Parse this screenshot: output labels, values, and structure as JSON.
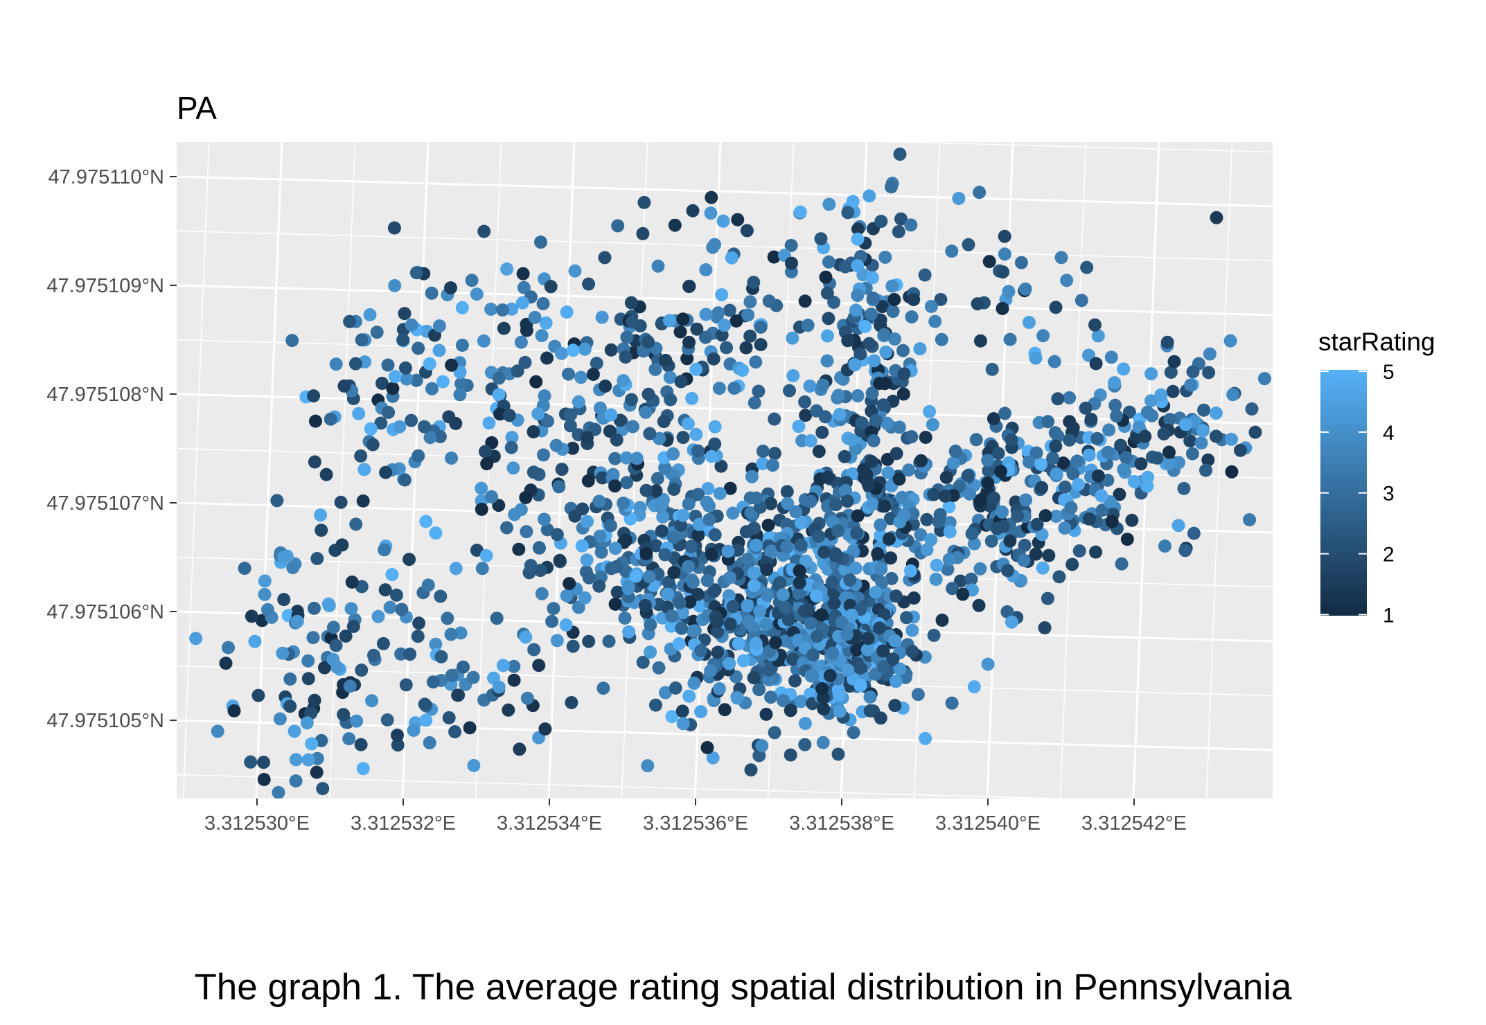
{
  "caption": "The graph 1. The average rating spatial distribution in Pennsylvania",
  "chart_data": {
    "type": "scatter",
    "title": "PA",
    "xlabel": "",
    "ylabel": "",
    "x_ticks": [
      "3.312530°E",
      "3.312532°E",
      "3.312534°E",
      "3.312536°E",
      "3.312538°E",
      "3.312540°E",
      "3.312542°E"
    ],
    "y_ticks": [
      "47.975105°N",
      "47.975106°N",
      "47.975107°N",
      "47.975108°N",
      "47.975109°N",
      "47.975110°N"
    ],
    "xlim": [
      3.3125287,
      3.3125438
    ],
    "ylim": [
      47.9751043,
      47.9751104
    ],
    "grid": true,
    "legend": {
      "title": "starRating",
      "labels": [
        "5",
        "4",
        "3",
        "2",
        "1"
      ],
      "position": "right",
      "low_color": "#132B43",
      "high_color": "#56B1F7",
      "range": [
        1,
        5
      ]
    },
    "colors": {
      "panel": "#EBEBEB",
      "grid": "#FFFFFF",
      "low": "#132B43",
      "high": "#56B1F7"
    },
    "clusters": [
      {
        "x": 3.312537,
        "y": 47.975106,
        "sx": 1e-06,
        "sy": 6e-07,
        "n": 650
      },
      {
        "x": 3.312538,
        "y": 47.9751055,
        "sx": 3.5e-07,
        "sy": 2.5e-07,
        "n": 200
      },
      {
        "x": 3.31254,
        "y": 47.9751068,
        "sx": 1e-06,
        "sy": 4e-07,
        "n": 230
      },
      {
        "x": 3.312542,
        "y": 47.9751075,
        "sx": 8e-07,
        "sy": 4e-07,
        "n": 130
      },
      {
        "x": 3.3125382,
        "y": 47.975108,
        "sx": 3.5e-07,
        "sy": 1e-06,
        "n": 200
      },
      {
        "x": 3.312535,
        "y": 47.9751065,
        "sx": 8e-07,
        "sy": 5e-07,
        "n": 160
      },
      {
        "x": 3.312533,
        "y": 47.975108,
        "sx": 9e-07,
        "sy": 6e-07,
        "n": 110
      },
      {
        "x": 3.312535,
        "y": 47.975108,
        "sx": 1e-06,
        "sy": 5.5e-07,
        "n": 130
      },
      {
        "x": 3.312532,
        "y": 47.9751055,
        "sx": 9e-07,
        "sy": 5e-07,
        "n": 90
      },
      {
        "x": 3.3125305,
        "y": 47.975106,
        "sx": 7e-07,
        "sy": 4.5e-07,
        "n": 55
      },
      {
        "x": 3.3125315,
        "y": 47.975108,
        "sx": 5e-07,
        "sy": 6e-07,
        "n": 45
      },
      {
        "x": 3.3125366,
        "y": 47.9751088,
        "sx": 8e-07,
        "sy": 6e-07,
        "n": 70
      },
      {
        "x": 3.31254,
        "y": 47.9751088,
        "sx": 8e-07,
        "sy": 5e-07,
        "n": 40
      },
      {
        "x": 3.3125305,
        "y": 47.9751048,
        "sx": 7e-07,
        "sy": 2.5e-07,
        "n": 25
      }
    ]
  }
}
